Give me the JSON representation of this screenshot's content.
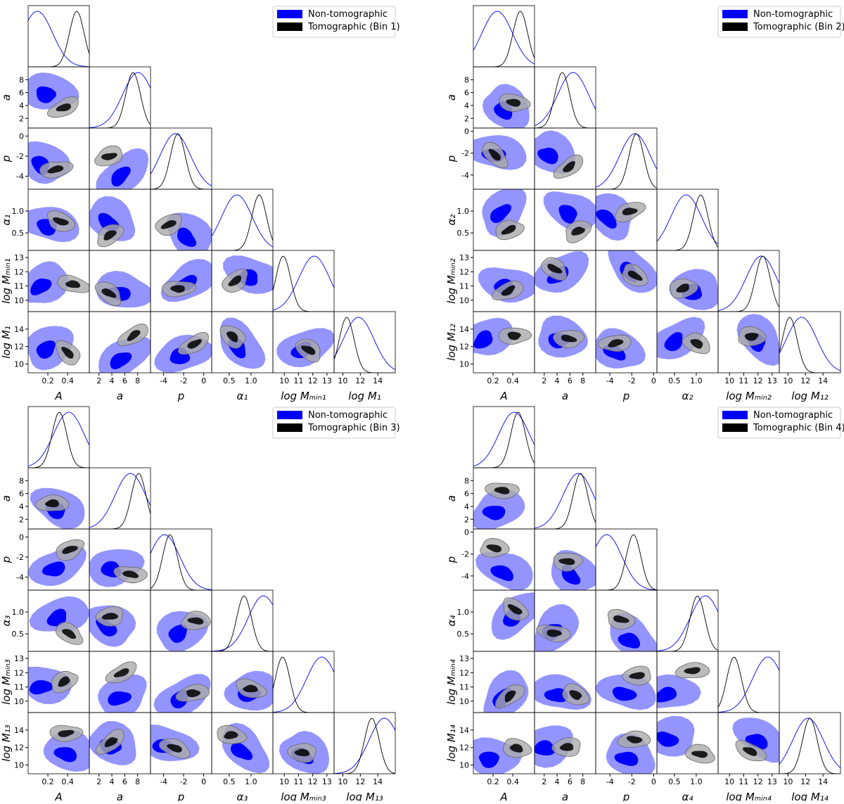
{
  "chart_data": [
    {
      "type": "corner",
      "series": [
        {
          "name": "Non-tomographic",
          "color": "#0000ff"
        },
        {
          "name": "Tomographic (Bin 1)",
          "color": "#000000"
        }
      ],
      "params": [
        {
          "label": "A",
          "lim": [
            0,
            0.62
          ],
          "ticks": [
            0.2,
            0.4
          ]
        },
        {
          "label": "a",
          "lim": [
            0.5,
            10
          ],
          "ticks": [
            2,
            4,
            6,
            8
          ]
        },
        {
          "label": "p",
          "lim": [
            -5.3,
            0.8
          ],
          "ticks": [
            -4,
            -2,
            0
          ]
        },
        {
          "label": "α₁",
          "lim": [
            0.1,
            1.5
          ],
          "ticks": [
            0.5,
            {
              "value": 1,
              "label": "1.0"
            }
          ]
        },
        {
          "label": "log Mₘᵢₙ₁",
          "lim": [
            9.2,
            13.5
          ],
          "ticks": [
            10,
            11,
            12,
            13
          ]
        },
        {
          "label": "log M₁",
          "lim": [
            9,
            16
          ],
          "ticks": [
            10,
            12,
            14
          ]
        }
      ]
    },
    {
      "type": "corner",
      "series": [
        {
          "name": "Non-tomographic",
          "color": "#0000ff"
        },
        {
          "name": "Tomographic (Bin 2)",
          "color": "#000000"
        }
      ],
      "params": [
        {
          "label": "A",
          "lim": [
            0,
            0.62
          ],
          "ticks": [
            0.2,
            0.4
          ]
        },
        {
          "label": "a",
          "lim": [
            0.5,
            10
          ],
          "ticks": [
            2,
            4,
            6,
            8
          ]
        },
        {
          "label": "p",
          "lim": [
            -5.3,
            0.3
          ],
          "ticks": [
            -4,
            -2,
            0
          ]
        },
        {
          "label": "α₂",
          "lim": [
            0.1,
            1.5
          ],
          "ticks": [
            0.5,
            {
              "value": 1,
              "label": "1.0"
            }
          ]
        },
        {
          "label": "log Mₘᵢₙ₂",
          "lim": [
            9.2,
            13.5
          ],
          "ticks": [
            10,
            11,
            12,
            13
          ]
        },
        {
          "label": "log M₁₂",
          "lim": [
            9,
            16
          ],
          "ticks": [
            10,
            12,
            14
          ]
        }
      ]
    },
    {
      "type": "corner",
      "series": [
        {
          "name": "Non-tomographic",
          "color": "#0000ff"
        },
        {
          "name": "Tomographic (Bin 3)",
          "color": "#000000"
        }
      ],
      "params": [
        {
          "label": "A",
          "lim": [
            0,
            0.62
          ],
          "ticks": [
            0.2,
            0.4
          ]
        },
        {
          "label": "a",
          "lim": [
            0.5,
            10
          ],
          "ticks": [
            2,
            4,
            6,
            8
          ]
        },
        {
          "label": "p",
          "lim": [
            -5.3,
            0.8
          ],
          "ticks": [
            -4,
            -2,
            0
          ]
        },
        {
          "label": "α₃",
          "lim": [
            0.1,
            1.5
          ],
          "ticks": [
            0.5,
            {
              "value": 1,
              "label": "1.0"
            }
          ]
        },
        {
          "label": "log Mₘᵢₙ₃",
          "lim": [
            9.2,
            13.5
          ],
          "ticks": [
            10,
            11,
            12,
            13
          ]
        },
        {
          "label": "log M₁₃",
          "lim": [
            9,
            16
          ],
          "ticks": [
            10,
            12,
            14
          ]
        }
      ]
    },
    {
      "type": "corner",
      "series": [
        {
          "name": "Non-tomographic",
          "color": "#0000ff"
        },
        {
          "name": "Tomographic (Bin 4)",
          "color": "#000000"
        }
      ],
      "params": [
        {
          "label": "A",
          "lim": [
            0,
            0.62
          ],
          "ticks": [
            0.2,
            0.4
          ]
        },
        {
          "label": "a",
          "lim": [
            0.5,
            10
          ],
          "ticks": [
            2,
            4,
            6,
            8
          ]
        },
        {
          "label": "p",
          "lim": [
            -5.3,
            0.3
          ],
          "ticks": [
            -4,
            -2,
            0
          ]
        },
        {
          "label": "α₄",
          "lim": [
            0.1,
            1.5
          ],
          "ticks": [
            0.5,
            {
              "value": 1,
              "label": "1.0"
            }
          ]
        },
        {
          "label": "log Mₘᵢₙ₄",
          "lim": [
            9.2,
            13.5
          ],
          "ticks": [
            10,
            11,
            12,
            13
          ]
        },
        {
          "label": "log M₁₄",
          "lim": [
            9,
            16
          ],
          "ticks": [
            10,
            12,
            14
          ]
        }
      ]
    }
  ]
}
